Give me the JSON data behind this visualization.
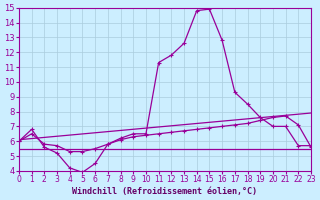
{
  "background_color": "#cceeff",
  "grid_color": "#aaccdd",
  "line_color": "#990099",
  "xlabel": "Windchill (Refroidissement éolien,°C)",
  "xlabel_color": "#660066",
  "xlim": [
    0,
    23
  ],
  "ylim": [
    4,
    15
  ],
  "yticks": [
    4,
    5,
    6,
    7,
    8,
    9,
    10,
    11,
    12,
    13,
    14,
    15
  ],
  "xticks": [
    0,
    1,
    2,
    3,
    4,
    5,
    6,
    7,
    8,
    9,
    10,
    11,
    12,
    13,
    14,
    15,
    16,
    17,
    18,
    19,
    20,
    21,
    22,
    23
  ],
  "curve1_x": [
    0,
    1,
    2,
    3,
    4,
    5,
    6,
    7,
    8,
    9,
    10,
    11,
    12,
    13,
    14,
    15,
    16,
    17,
    18,
    19,
    20,
    21,
    22,
    23
  ],
  "curve1_y": [
    6.0,
    6.8,
    5.6,
    5.2,
    4.2,
    3.9,
    4.5,
    5.8,
    6.2,
    6.5,
    6.5,
    11.3,
    11.8,
    12.6,
    14.8,
    14.9,
    12.8,
    9.3,
    8.5,
    7.6,
    7.0,
    7.0,
    5.7,
    5.7
  ],
  "curve2_x": [
    0,
    1,
    2,
    3,
    4,
    5,
    6,
    7,
    8,
    9,
    10,
    11,
    12,
    13,
    14,
    15,
    16,
    17,
    18,
    19,
    20,
    21,
    22,
    23
  ],
  "curve2_y": [
    6.0,
    6.5,
    5.8,
    5.7,
    5.3,
    5.3,
    5.5,
    5.8,
    6.1,
    6.3,
    6.4,
    6.5,
    6.6,
    6.7,
    6.8,
    6.9,
    7.0,
    7.1,
    7.2,
    7.4,
    7.6,
    7.7,
    7.1,
    5.6
  ],
  "curve3_x": [
    0,
    23
  ],
  "curve3_y": [
    5.5,
    5.5
  ],
  "curve4_x": [
    0,
    23
  ],
  "curve4_y": [
    6.1,
    7.9
  ]
}
